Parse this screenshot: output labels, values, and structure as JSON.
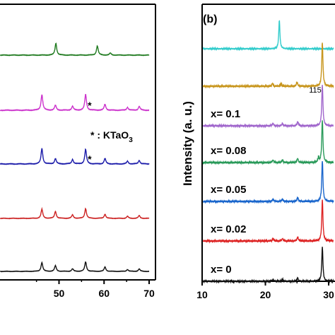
{
  "chart_data": [
    {
      "type": "line",
      "panel": "a (partial)",
      "xlim": [
        30,
        70
      ],
      "x_ticks": [
        "50",
        "60",
        "70"
      ],
      "annotation": {
        "text": "* : KTaO",
        "subscript": "3"
      },
      "series": [
        {
          "color": "#1f7a1f",
          "peaks": [
            {
              "x": 49.3,
              "h": 0.7
            },
            {
              "x": 58.5,
              "h": 0.55
            },
            {
              "x": 61.4,
              "h": 0.12
            }
          ]
        },
        {
          "color": "#cc33cc",
          "peaks": [
            {
              "x": 46.2,
              "h": 0.8
            },
            {
              "x": 49.2,
              "h": 0.25
            },
            {
              "x": 53.0,
              "h": 0.2
            },
            {
              "x": 55.9,
              "h": 0.8
            },
            {
              "x": 60.2,
              "h": 0.3
            },
            {
              "x": 65.2,
              "h": 0.15
            },
            {
              "x": 67.8,
              "h": 0.2
            }
          ],
          "marker": {
            "x": 56.8,
            "text": "*"
          }
        },
        {
          "color": "#1c1caa",
          "peaks": [
            {
              "x": 46.2,
              "h": 0.85
            },
            {
              "x": 49.2,
              "h": 0.3
            },
            {
              "x": 53.0,
              "h": 0.25
            },
            {
              "x": 55.9,
              "h": 0.8
            },
            {
              "x": 60.2,
              "h": 0.3
            },
            {
              "x": 65.2,
              "h": 0.15
            },
            {
              "x": 67.8,
              "h": 0.2
            }
          ],
          "marker": {
            "x": 56.8,
            "text": "*"
          }
        },
        {
          "color": "#cc2222",
          "peaks": [
            {
              "x": 46.2,
              "h": 0.65
            },
            {
              "x": 49.2,
              "h": 0.5
            },
            {
              "x": 53.0,
              "h": 0.25
            },
            {
              "x": 55.9,
              "h": 0.7
            },
            {
              "x": 60.2,
              "h": 0.3
            },
            {
              "x": 65.2,
              "h": 0.15
            },
            {
              "x": 67.8,
              "h": 0.2
            }
          ]
        },
        {
          "color": "#111111",
          "peaks": [
            {
              "x": 46.2,
              "h": 0.7
            },
            {
              "x": 49.2,
              "h": 0.45
            },
            {
              "x": 53.0,
              "h": 0.2
            },
            {
              "x": 55.9,
              "h": 0.75
            },
            {
              "x": 60.2,
              "h": 0.35
            },
            {
              "x": 65.2,
              "h": 0.15
            },
            {
              "x": 67.8,
              "h": 0.2
            }
          ]
        }
      ]
    },
    {
      "type": "line",
      "panel": "(b)",
      "ylabel": "Intensity (a. u.)",
      "xlim": [
        10,
        31
      ],
      "x_ticks": [
        "10",
        "20",
        "30"
      ],
      "peak_label": "115",
      "series": [
        {
          "name": "",
          "color": "#33cccc",
          "peaks": [
            {
              "x": 22.2,
              "h": 1.0
            }
          ]
        },
        {
          "name": "",
          "color": "#c8961e",
          "peaks": [
            {
              "x": 21.1,
              "h": 0.06
            },
            {
              "x": 22.5,
              "h": 0.06
            },
            {
              "x": 25.0,
              "h": 0.1
            },
            {
              "x": 29.0,
              "h": 1.0
            }
          ]
        },
        {
          "name": "x= 0.1",
          "color": "#a066cc",
          "peaks": [
            {
              "x": 21.2,
              "h": 0.06
            },
            {
              "x": 22.7,
              "h": 0.06
            },
            {
              "x": 25.1,
              "h": 0.1
            },
            {
              "x": 29.0,
              "h": 1.0
            }
          ]
        },
        {
          "name": "x= 0.08",
          "color": "#2a9a5a",
          "peaks": [
            {
              "x": 21.2,
              "h": 0.06
            },
            {
              "x": 22.7,
              "h": 0.06
            },
            {
              "x": 25.1,
              "h": 0.1
            },
            {
              "x": 28.4,
              "h": 0.12
            },
            {
              "x": 29.0,
              "h": 1.0
            }
          ]
        },
        {
          "name": "x= 0.05",
          "color": "#1a66cc",
          "peaks": [
            {
              "x": 21.2,
              "h": 0.06
            },
            {
              "x": 22.7,
              "h": 0.06
            },
            {
              "x": 25.1,
              "h": 0.1
            },
            {
              "x": 29.0,
              "h": 1.0
            }
          ]
        },
        {
          "name": "x= 0.02",
          "color": "#dd2222",
          "peaks": [
            {
              "x": 21.2,
              "h": 0.06
            },
            {
              "x": 22.7,
              "h": 0.06
            },
            {
              "x": 25.1,
              "h": 0.1
            },
            {
              "x": 29.0,
              "h": 1.0
            }
          ]
        },
        {
          "name": "x= 0",
          "color": "#111111",
          "peaks": [
            {
              "x": 21.2,
              "h": 0.06
            },
            {
              "x": 22.7,
              "h": 0.06
            },
            {
              "x": 25.1,
              "h": 0.1
            },
            {
              "x": 29.0,
              "h": 1.0
            }
          ]
        }
      ]
    }
  ]
}
